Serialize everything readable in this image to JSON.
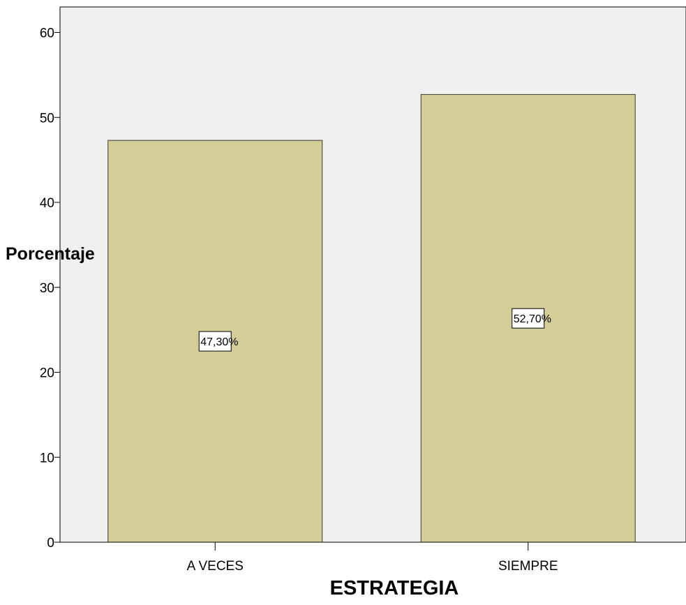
{
  "chart_data": {
    "type": "bar",
    "categories": [
      "A VECES",
      "SIEMPRE"
    ],
    "values": [
      47.3,
      52.7
    ],
    "data_labels": [
      "47,30%",
      "52,70%"
    ],
    "xlabel": "ESTRATEGIA",
    "ylabel": "Porcentaje",
    "ylim": [
      0,
      63
    ],
    "yticks": [
      0,
      10,
      20,
      30,
      40,
      50,
      60
    ],
    "grid": false,
    "legend": "none",
    "colors": {
      "plot_background": "#f0f0f0",
      "bar_fill": "#d3cd98",
      "bar_stroke": "#3a3a2a",
      "axis": "#000000",
      "label_box": "#ffffff"
    }
  }
}
